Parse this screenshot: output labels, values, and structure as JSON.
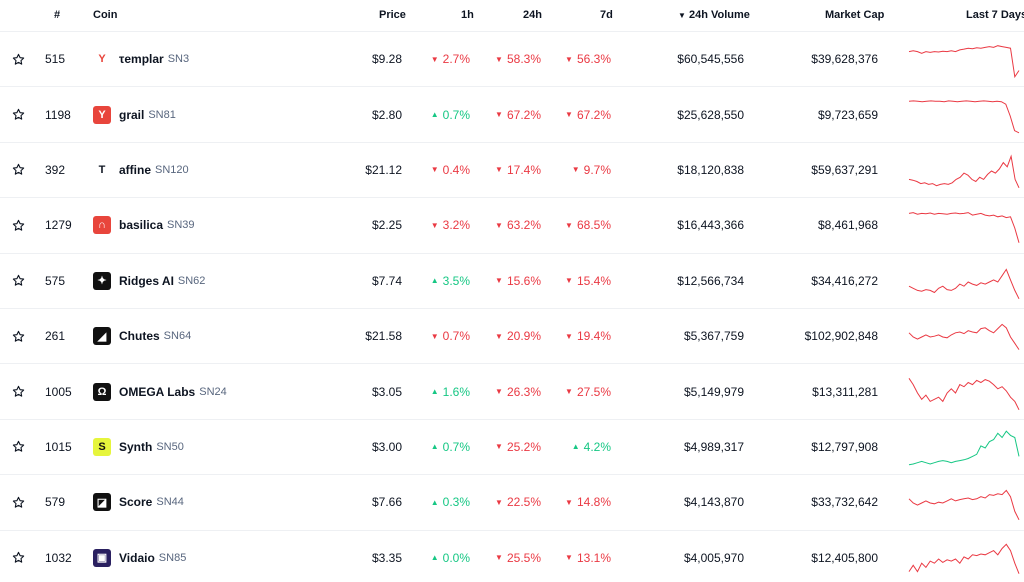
{
  "headers": {
    "rank": "#",
    "coin": "Coin",
    "price": "Price",
    "h1": "1h",
    "h24": "24h",
    "d7": "7d",
    "volume": "24h Volume",
    "volume_sort_icon": "▼",
    "market_cap": "Market Cap",
    "sparkline": "Last 7 Days"
  },
  "colors": {
    "up": "#16c784",
    "down": "#ea3943"
  },
  "rows": [
    {
      "rank": "515",
      "name": "τemplar",
      "symbol": "SN3",
      "price": "$9.28",
      "h1": "2.7%",
      "h1_dir": "down",
      "h24": "58.3%",
      "h24_dir": "down",
      "d7": "56.3%",
      "d7_dir": "down",
      "volume": "$60,545,556",
      "market_cap": "$39,628,376",
      "logo_icon": "templar-logo-icon",
      "logo_glyph": "Y",
      "logo_bg": "#ffffff",
      "logo_fg": "#e8453c",
      "spark_color": "down",
      "spark": [
        0.7,
        0.72,
        0.7,
        0.66,
        0.7,
        0.68,
        0.7,
        0.69,
        0.71,
        0.7,
        0.72,
        0.7,
        0.74,
        0.76,
        0.78,
        0.77,
        0.79,
        0.78,
        0.8,
        0.82,
        0.8,
        0.84,
        0.82,
        0.8,
        0.78,
        0.1,
        0.25
      ]
    },
    {
      "rank": "1198",
      "name": "grail",
      "symbol": "SN81",
      "price": "$2.80",
      "h1": "0.7%",
      "h1_dir": "up",
      "h24": "67.2%",
      "h24_dir": "down",
      "d7": "67.2%",
      "d7_dir": "down",
      "volume": "$25,628,550",
      "market_cap": "$9,723,659",
      "logo_icon": "grail-logo-icon",
      "logo_glyph": "Y",
      "logo_bg": "#e8453c",
      "logo_fg": "#ffffff",
      "spark_color": "down",
      "spark": [
        0.85,
        0.86,
        0.85,
        0.84,
        0.85,
        0.86,
        0.85,
        0.85,
        0.84,
        0.86,
        0.85,
        0.84,
        0.85,
        0.86,
        0.85,
        0.84,
        0.85,
        0.86,
        0.85,
        0.84,
        0.85,
        0.84,
        0.78,
        0.5,
        0.15,
        0.1
      ]
    },
    {
      "rank": "392",
      "name": "affine",
      "symbol": "SN120",
      "price": "$21.12",
      "h1": "0.4%",
      "h1_dir": "down",
      "h24": "17.4%",
      "h24_dir": "down",
      "d7": "9.7%",
      "d7_dir": "down",
      "volume": "$18,120,838",
      "market_cap": "$59,637,291",
      "logo_icon": "affine-logo-icon",
      "logo_glyph": "T",
      "logo_bg": "#ffffff",
      "logo_fg": "#0d1421",
      "spark_color": "down",
      "spark": [
        0.3,
        0.28,
        0.25,
        0.2,
        0.22,
        0.18,
        0.2,
        0.15,
        0.18,
        0.2,
        0.18,
        0.22,
        0.3,
        0.35,
        0.45,
        0.4,
        0.3,
        0.25,
        0.35,
        0.3,
        0.42,
        0.5,
        0.45,
        0.55,
        0.7,
        0.6,
        0.85,
        0.3,
        0.1
      ]
    },
    {
      "rank": "1279",
      "name": "basilica",
      "symbol": "SN39",
      "price": "$2.25",
      "h1": "3.2%",
      "h1_dir": "down",
      "h24": "63.2%",
      "h24_dir": "down",
      "d7": "68.5%",
      "d7_dir": "down",
      "volume": "$16,443,366",
      "market_cap": "$8,461,968",
      "logo_icon": "basilica-logo-icon",
      "logo_glyph": "∩",
      "logo_bg": "#e8453c",
      "logo_fg": "#ffffff",
      "spark_color": "down",
      "spark": [
        0.8,
        0.82,
        0.78,
        0.8,
        0.79,
        0.81,
        0.78,
        0.8,
        0.79,
        0.78,
        0.8,
        0.81,
        0.79,
        0.8,
        0.82,
        0.76,
        0.78,
        0.8,
        0.76,
        0.74,
        0.76,
        0.72,
        0.74,
        0.7,
        0.72,
        0.45,
        0.1
      ]
    },
    {
      "rank": "575",
      "name": "Ridges AI",
      "symbol": "SN62",
      "price": "$7.74",
      "h1": "3.5%",
      "h1_dir": "up",
      "h24": "15.6%",
      "h24_dir": "down",
      "d7": "15.4%",
      "d7_dir": "down",
      "volume": "$12,566,734",
      "market_cap": "$34,416,272",
      "logo_icon": "ridges-logo-icon",
      "logo_glyph": "✦",
      "logo_bg": "#111111",
      "logo_fg": "#ffffff",
      "spark_color": "down",
      "spark": [
        0.4,
        0.35,
        0.3,
        0.28,
        0.32,
        0.3,
        0.25,
        0.35,
        0.4,
        0.32,
        0.3,
        0.35,
        0.45,
        0.4,
        0.5,
        0.45,
        0.42,
        0.48,
        0.45,
        0.5,
        0.55,
        0.5,
        0.65,
        0.8,
        0.55,
        0.3,
        0.1
      ]
    },
    {
      "rank": "261",
      "name": "Chutes",
      "symbol": "SN64",
      "price": "$21.58",
      "h1": "0.7%",
      "h1_dir": "down",
      "h24": "20.9%",
      "h24_dir": "down",
      "d7": "19.4%",
      "d7_dir": "down",
      "volume": "$5,367,759",
      "market_cap": "$102,902,848",
      "logo_icon": "chutes-logo-icon",
      "logo_glyph": "◢",
      "logo_bg": "#111111",
      "logo_fg": "#ffffff",
      "spark_color": "down",
      "spark": [
        0.6,
        0.5,
        0.45,
        0.5,
        0.55,
        0.5,
        0.52,
        0.55,
        0.5,
        0.48,
        0.55,
        0.6,
        0.62,
        0.58,
        0.65,
        0.62,
        0.6,
        0.7,
        0.72,
        0.65,
        0.6,
        0.7,
        0.8,
        0.72,
        0.5,
        0.35,
        0.2
      ]
    },
    {
      "rank": "1005",
      "name": "OMEGA Labs",
      "symbol": "SN24",
      "price": "$3.05",
      "h1": "1.6%",
      "h1_dir": "up",
      "h24": "26.3%",
      "h24_dir": "down",
      "d7": "27.5%",
      "d7_dir": "down",
      "volume": "$5,149,979",
      "market_cap": "$13,311,281",
      "logo_icon": "omega-logo-icon",
      "logo_glyph": "Ω",
      "logo_bg": "#111111",
      "logo_fg": "#ffffff",
      "spark_color": "down",
      "spark": [
        0.85,
        0.7,
        0.5,
        0.35,
        0.45,
        0.3,
        0.35,
        0.4,
        0.3,
        0.5,
        0.6,
        0.5,
        0.7,
        0.65,
        0.75,
        0.7,
        0.8,
        0.75,
        0.82,
        0.78,
        0.7,
        0.6,
        0.65,
        0.55,
        0.4,
        0.3,
        0.1
      ]
    },
    {
      "rank": "1015",
      "name": "Synth",
      "symbol": "SN50",
      "price": "$3.00",
      "h1": "0.7%",
      "h1_dir": "up",
      "h24": "25.2%",
      "h24_dir": "down",
      "d7": "4.2%",
      "d7_dir": "up",
      "volume": "$4,989,317",
      "market_cap": "$12,797,908",
      "logo_icon": "synth-logo-icon",
      "logo_glyph": "S",
      "logo_bg": "#e6f53c",
      "logo_fg": "#111111",
      "spark_color": "up",
      "spark": [
        0.1,
        0.12,
        0.15,
        0.18,
        0.15,
        0.12,
        0.15,
        0.18,
        0.2,
        0.18,
        0.15,
        0.18,
        0.2,
        0.22,
        0.25,
        0.3,
        0.35,
        0.55,
        0.5,
        0.65,
        0.7,
        0.85,
        0.75,
        0.9,
        0.8,
        0.75,
        0.3
      ]
    },
    {
      "rank": "579",
      "name": "Score",
      "symbol": "SN44",
      "price": "$7.66",
      "h1": "0.3%",
      "h1_dir": "up",
      "h24": "22.5%",
      "h24_dir": "down",
      "d7": "14.8%",
      "d7_dir": "down",
      "volume": "$4,143,870",
      "market_cap": "$33,732,642",
      "logo_icon": "score-logo-icon",
      "logo_glyph": "◪",
      "logo_bg": "#111111",
      "logo_fg": "#ffffff",
      "spark_color": "down",
      "spark": [
        0.6,
        0.5,
        0.45,
        0.5,
        0.55,
        0.5,
        0.48,
        0.52,
        0.5,
        0.55,
        0.6,
        0.55,
        0.58,
        0.6,
        0.62,
        0.58,
        0.6,
        0.65,
        0.62,
        0.7,
        0.68,
        0.72,
        0.7,
        0.8,
        0.65,
        0.3,
        0.1
      ]
    },
    {
      "rank": "1032",
      "name": "Vidaio",
      "symbol": "SN85",
      "price": "$3.35",
      "h1": "0.0%",
      "h1_dir": "up",
      "h24": "25.5%",
      "h24_dir": "down",
      "d7": "13.1%",
      "d7_dir": "down",
      "volume": "$4,005,970",
      "market_cap": "$12,405,800",
      "logo_icon": "vidaio-logo-icon",
      "logo_glyph": "▣",
      "logo_bg": "#2a2060",
      "logo_fg": "#ffffff",
      "spark_color": "down",
      "spark": [
        0.2,
        0.35,
        0.2,
        0.4,
        0.3,
        0.45,
        0.4,
        0.5,
        0.42,
        0.48,
        0.45,
        0.5,
        0.4,
        0.55,
        0.5,
        0.6,
        0.58,
        0.62,
        0.6,
        0.65,
        0.7,
        0.6,
        0.75,
        0.85,
        0.7,
        0.4,
        0.15
      ]
    }
  ]
}
